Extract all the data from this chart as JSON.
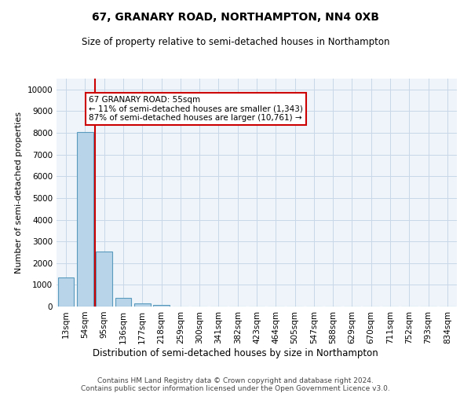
{
  "title": "67, GRANARY ROAD, NORTHAMPTON, NN4 0XB",
  "subtitle": "Size of property relative to semi-detached houses in Northampton",
  "xlabel": "Distribution of semi-detached houses by size in Northampton",
  "ylabel": "Number of semi-detached properties",
  "footer_line1": "Contains HM Land Registry data © Crown copyright and database right 2024.",
  "footer_line2": "Contains public sector information licensed under the Open Government Licence v3.0.",
  "bar_labels": [
    "13sqm",
    "54sqm",
    "95sqm",
    "136sqm",
    "177sqm",
    "218sqm",
    "259sqm",
    "300sqm",
    "341sqm",
    "382sqm",
    "423sqm",
    "464sqm",
    "505sqm",
    "547sqm",
    "588sqm",
    "629sqm",
    "670sqm",
    "711sqm",
    "752sqm",
    "793sqm",
    "834sqm"
  ],
  "bar_values": [
    1330,
    8050,
    2530,
    390,
    140,
    80,
    0,
    0,
    0,
    0,
    0,
    0,
    0,
    0,
    0,
    0,
    0,
    0,
    0,
    0,
    0
  ],
  "bar_color": "#b8d4e8",
  "bar_edge_color": "#5a9abf",
  "property_line_x": 1.5,
  "property_line_color": "#cc0000",
  "annotation_text": "67 GRANARY ROAD: 55sqm\n← 11% of semi-detached houses are smaller (1,343)\n87% of semi-detached houses are larger (10,761) →",
  "annotation_box_color": "#ffffff",
  "annotation_box_edge": "#cc0000",
  "ylim": [
    0,
    10500
  ],
  "yticks": [
    0,
    1000,
    2000,
    3000,
    4000,
    5000,
    6000,
    7000,
    8000,
    9000,
    10000
  ],
  "ytick_labels": [
    "0",
    "1000",
    "2000",
    "3000",
    "4000",
    "5000",
    "6000",
    "7000",
    "8000",
    "9000",
    "10000"
  ],
  "grid_color": "#c8d8e8",
  "background_color": "#eef4fa",
  "title_fontsize": 10,
  "subtitle_fontsize": 8.5,
  "ylabel_fontsize": 8,
  "xlabel_fontsize": 8.5,
  "tick_fontsize": 7.5,
  "annot_fontsize": 7.5,
  "footer_fontsize": 6.5
}
